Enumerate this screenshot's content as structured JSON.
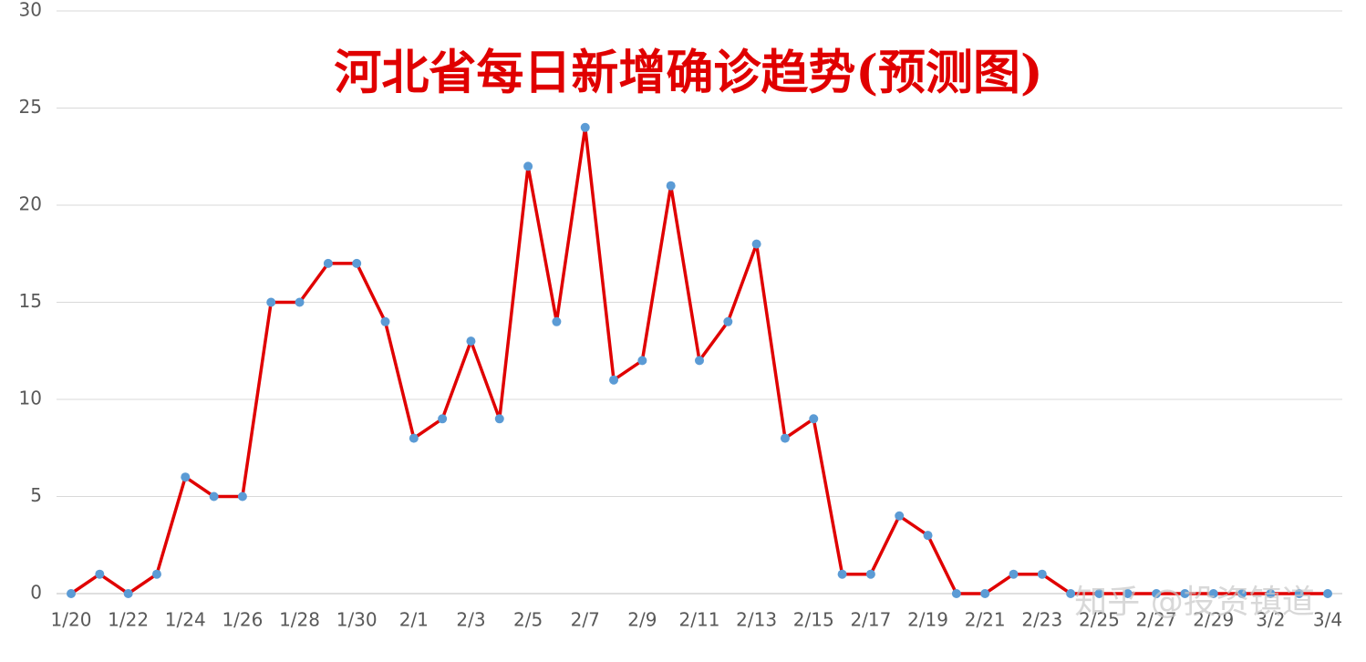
{
  "chart_data": {
    "type": "line",
    "title": "河北省每日新增确诊趋势(预测图)",
    "watermark": "知乎 @投资镇道",
    "categories": [
      "1/20",
      null,
      "1/22",
      null,
      "1/24",
      null,
      "1/26",
      null,
      "1/28",
      null,
      "1/30",
      null,
      "2/1",
      null,
      "2/3",
      null,
      "2/5",
      null,
      "2/7",
      null,
      "2/9",
      null,
      "2/11",
      null,
      "2/13",
      null,
      "2/15",
      null,
      "2/17",
      null,
      "2/19",
      null,
      "2/21",
      null,
      "2/23",
      null,
      "2/25",
      null,
      "2/27",
      null,
      "2/29",
      null,
      "3/2",
      null,
      "3/4"
    ],
    "series": [
      {
        "color": "#e00000",
        "marker_color": "#5b9bd5",
        "values": [
          0,
          1,
          0,
          1,
          6,
          5,
          5,
          15,
          15,
          17,
          17,
          14,
          8,
          9,
          13,
          9,
          22,
          14,
          24,
          11,
          12,
          21,
          12,
          14,
          18,
          8,
          9,
          1,
          1,
          4,
          3,
          0,
          0,
          1,
          1,
          0,
          0,
          0,
          0,
          0,
          0,
          0,
          0,
          0,
          0
        ]
      }
    ],
    "ylim": [
      0,
      30
    ],
    "yticks": [
      0,
      5,
      10,
      15,
      20,
      25,
      30
    ],
    "grid": true
  }
}
